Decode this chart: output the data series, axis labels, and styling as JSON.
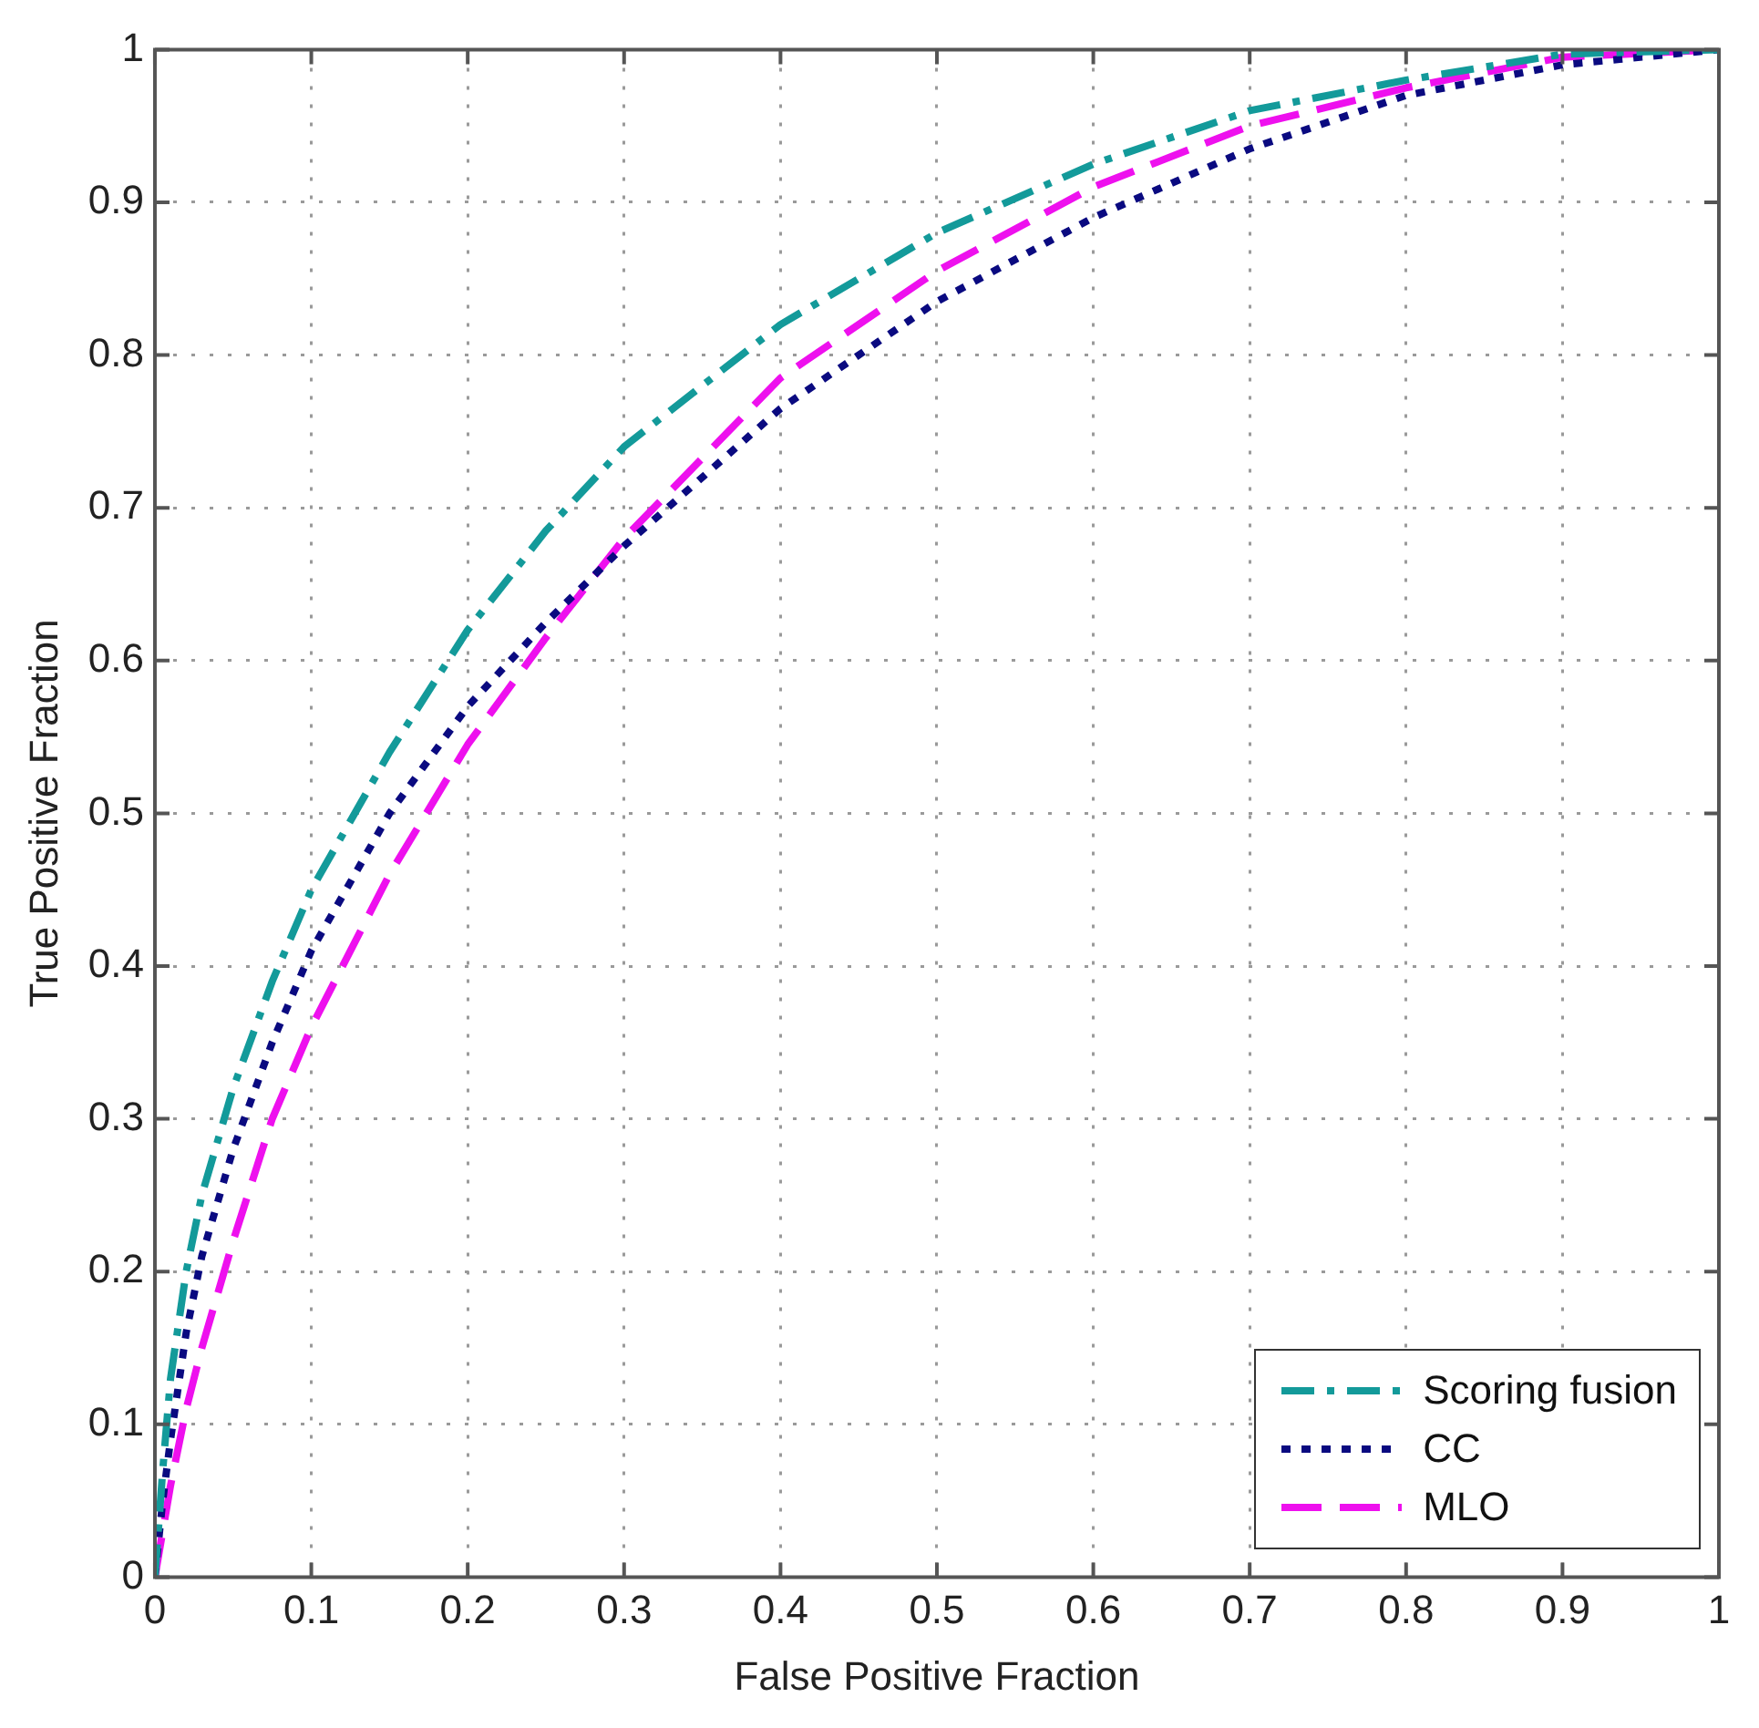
{
  "chart_data": {
    "type": "line",
    "xlabel": "False Positive Fraction",
    "ylabel": "True Positive Fraction",
    "xlim": [
      0,
      1
    ],
    "ylim": [
      0,
      1
    ],
    "xticks": [
      0,
      0.1,
      0.2,
      0.3,
      0.4,
      0.5,
      0.6,
      0.7,
      0.8,
      0.9,
      1
    ],
    "yticks": [
      0,
      0.1,
      0.2,
      0.3,
      0.4,
      0.5,
      0.6,
      0.7,
      0.8,
      0.9,
      1
    ],
    "grid": true,
    "legend": "bottom right",
    "marker": "none",
    "x": [
      0,
      0.005,
      0.01,
      0.02,
      0.03,
      0.05,
      0.075,
      0.1,
      0.15,
      0.2,
      0.25,
      0.3,
      0.4,
      0.5,
      0.6,
      0.7,
      0.8,
      0.9,
      1
    ],
    "series": [
      {
        "name": "Scoring fusion",
        "color": "#139a9a",
        "line_style": "dashdot",
        "values": [
          0,
          0.07,
          0.13,
          0.2,
          0.25,
          0.32,
          0.39,
          0.45,
          0.54,
          0.62,
          0.685,
          0.74,
          0.82,
          0.88,
          0.925,
          0.96,
          0.98,
          0.997,
          1
        ]
      },
      {
        "name": "CC",
        "color": "#0a0a80",
        "line_style": "dotted",
        "values": [
          0,
          0.05,
          0.09,
          0.16,
          0.21,
          0.28,
          0.35,
          0.41,
          0.5,
          0.57,
          0.625,
          0.675,
          0.765,
          0.835,
          0.89,
          0.935,
          0.97,
          0.99,
          1
        ]
      },
      {
        "name": "MLO",
        "color": "#ee10ee",
        "line_style": "dashed",
        "values": [
          0,
          0.03,
          0.06,
          0.11,
          0.15,
          0.22,
          0.3,
          0.36,
          0.46,
          0.545,
          0.615,
          0.68,
          0.785,
          0.855,
          0.91,
          0.95,
          0.975,
          0.995,
          1
        ]
      }
    ]
  }
}
